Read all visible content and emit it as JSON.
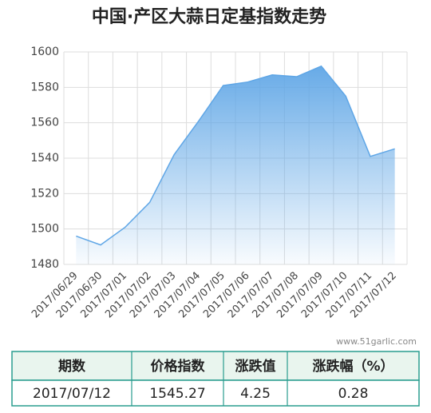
{
  "chart_data": {
    "type": "area",
    "title": "中国·产区大蒜日定基指数走势",
    "categories": [
      "2017/06/29",
      "2017/06/30",
      "2017/07/01",
      "2017/07/02",
      "2017/07/03",
      "2017/07/04",
      "2017/07/05",
      "2017/07/06",
      "2017/07/07",
      "2017/07/08",
      "2017/07/09",
      "2017/07/10",
      "2017/07/11",
      "2017/07/12"
    ],
    "values": [
      1496,
      1491,
      1501,
      1515,
      1542,
      1561,
      1581,
      1583,
      1587,
      1586,
      1592,
      1575,
      1541,
      1545.27
    ],
    "color": "#5fa6e6",
    "ylim": [
      1480,
      1600
    ],
    "yticks": [
      1480,
      1500,
      1520,
      1540,
      1560,
      1580,
      1600
    ],
    "grid": true
  },
  "watermark": "www.51garlic.com",
  "table": {
    "headers": [
      "期数",
      "价格指数",
      "涨跌值",
      "涨跌幅（%）"
    ],
    "rows": [
      [
        "2017/07/12",
        "1545.27",
        "4.25",
        "0.28"
      ]
    ]
  }
}
